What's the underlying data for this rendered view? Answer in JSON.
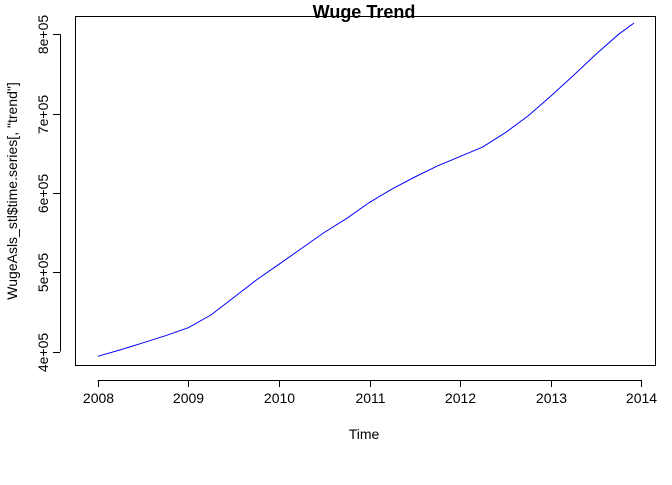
{
  "chart_data": {
    "type": "line",
    "title": "Wuge Trend",
    "xlabel": "Time",
    "ylabel": "WugeAsls_stl$time.series[, \"trend\"]",
    "xlim": [
      2007.75,
      2014.15
    ],
    "ylim": [
      383000,
      823000
    ],
    "x_ticks": [
      2008,
      2009,
      2010,
      2011,
      2012,
      2013,
      2014
    ],
    "x_tick_labels": [
      "2008",
      "2009",
      "2010",
      "2011",
      "2012",
      "2013",
      "2014"
    ],
    "y_ticks": [
      400000,
      500000,
      600000,
      700000,
      800000
    ],
    "y_tick_labels": [
      "4e+05",
      "5e+05",
      "6e+05",
      "7e+05",
      "8e+05"
    ],
    "grid": false,
    "line_color": "#0000ff",
    "series": [
      {
        "x": [
          2008.0,
          2008.25,
          2008.5,
          2008.75,
          2009.0,
          2009.25,
          2009.5,
          2009.75,
          2010.0,
          2010.25,
          2010.5,
          2010.75,
          2011.0,
          2011.25,
          2011.5,
          2011.75,
          2012.0,
          2012.25,
          2012.5,
          2012.75,
          2013.0,
          2013.25,
          2013.5,
          2013.75,
          2013.917
        ],
        "y": [
          394000,
          402000,
          411000,
          420000,
          430000,
          446000,
          468000,
          490000,
          510000,
          530000,
          550000,
          568000,
          588000,
          605000,
          620000,
          634000,
          646000,
          658000,
          676000,
          697000,
          722000,
          748000,
          775000,
          800000,
          814000
        ]
      }
    ]
  }
}
